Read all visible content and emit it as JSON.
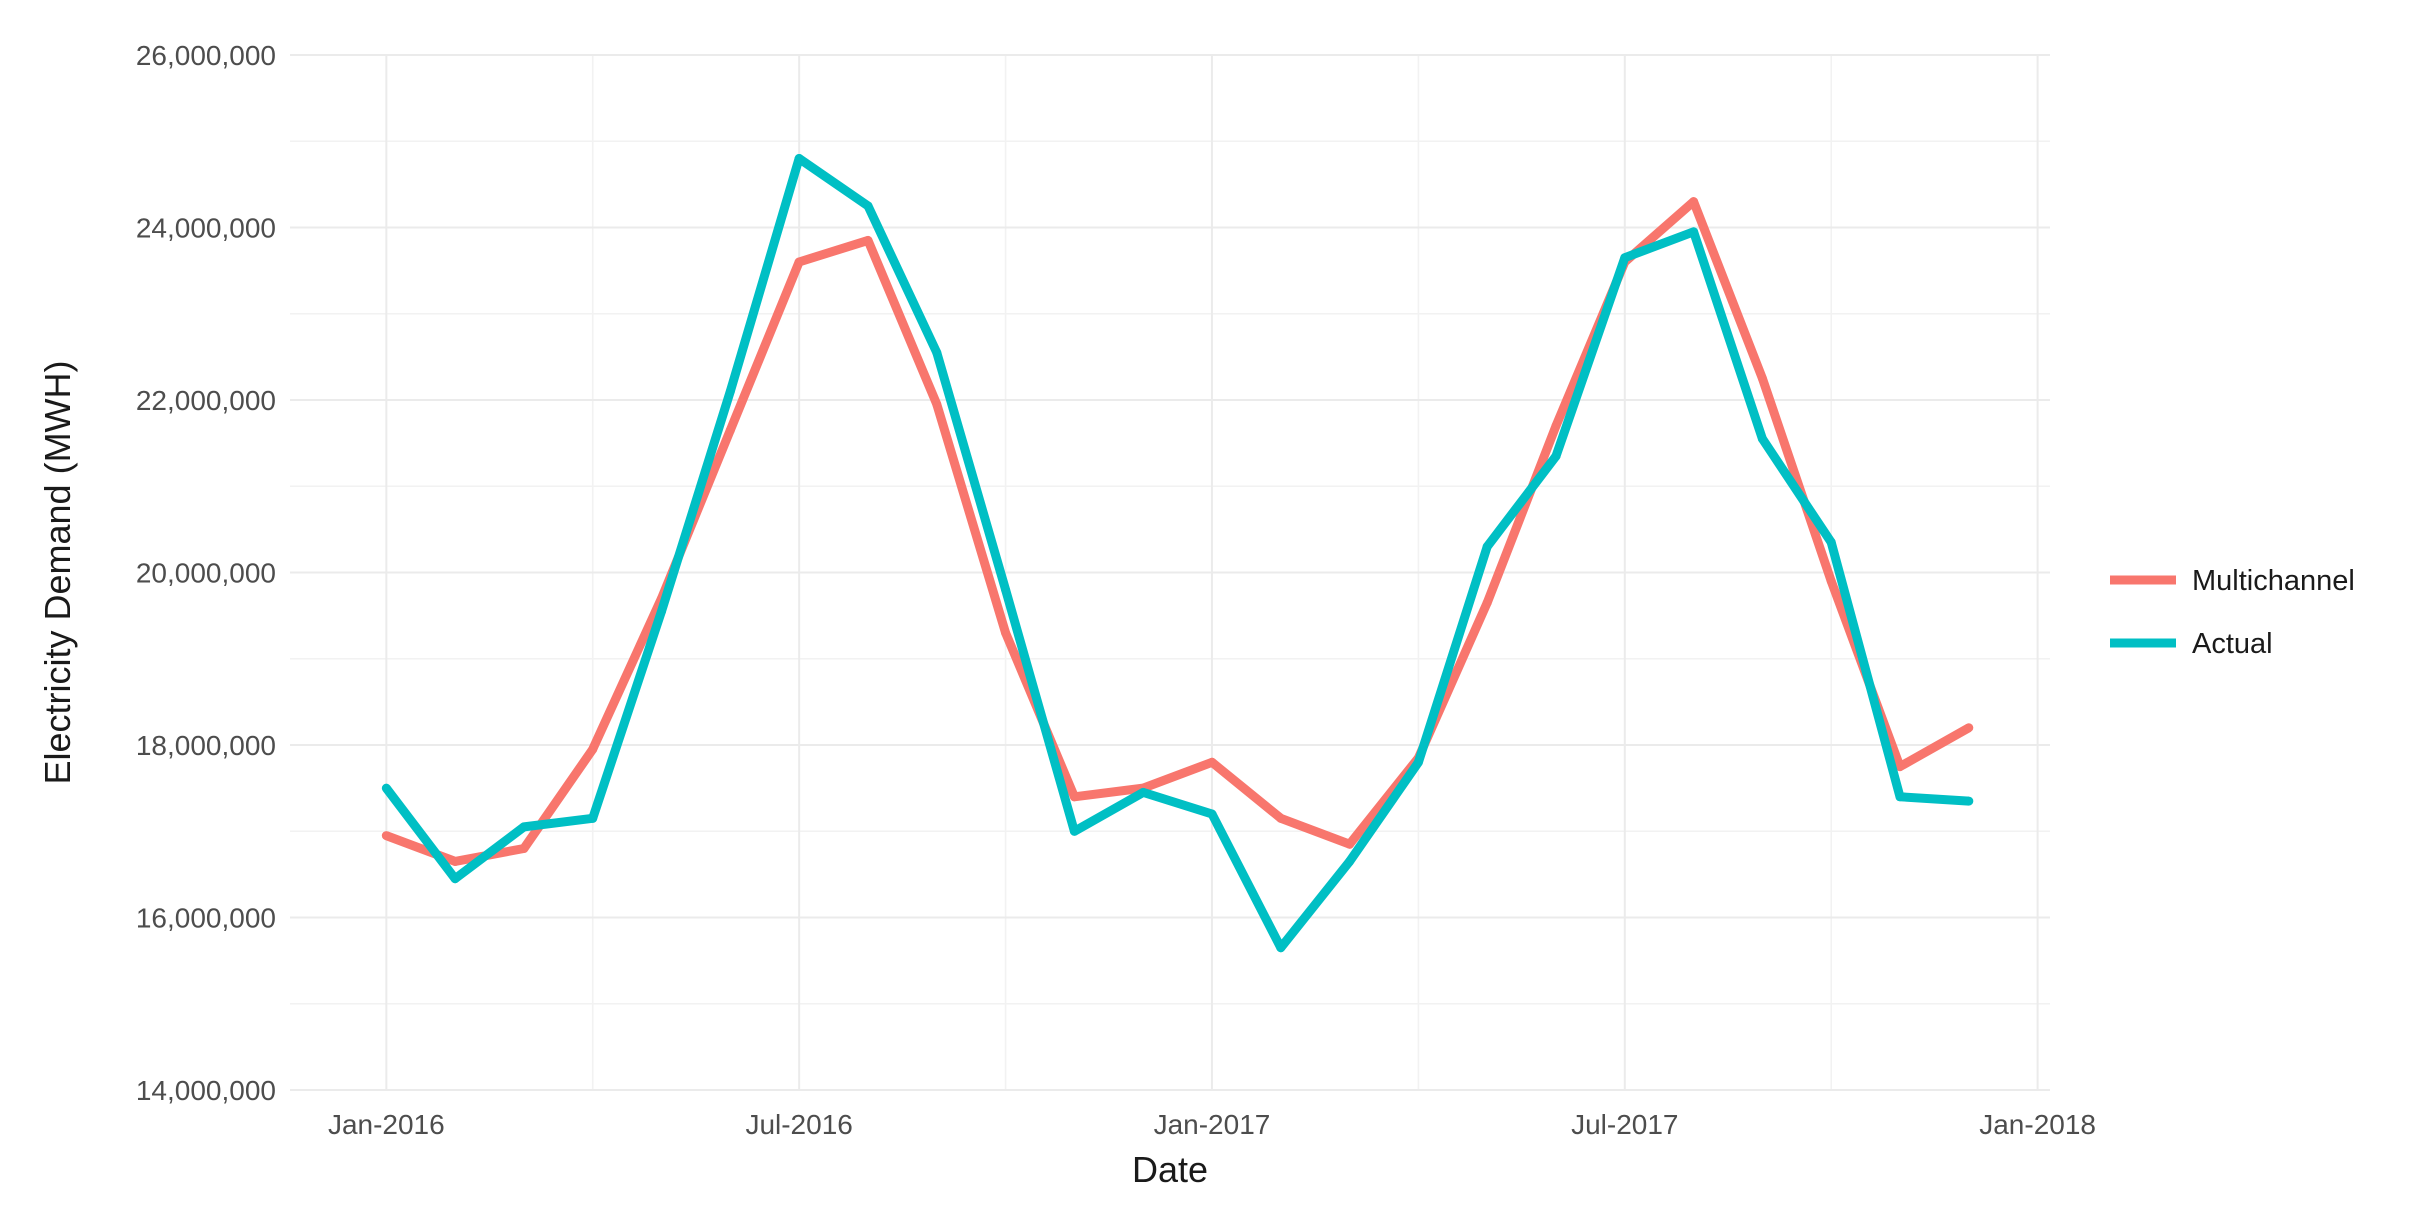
{
  "chart_data": {
    "type": "line",
    "title": "",
    "xlabel": "Date",
    "ylabel": "Electricity Demand (MWH)",
    "x": [
      "2016-01",
      "2016-02",
      "2016-03",
      "2016-04",
      "2016-05",
      "2016-06",
      "2016-07",
      "2016-08",
      "2016-09",
      "2016-10",
      "2016-11",
      "2016-12",
      "2017-01",
      "2017-02",
      "2017-03",
      "2017-04",
      "2017-05",
      "2017-06",
      "2017-07",
      "2017-08",
      "2017-09",
      "2017-10",
      "2017-11",
      "2017-12"
    ],
    "series": [
      {
        "name": "Multichannel",
        "color": "#F8766D",
        "values": [
          16950000,
          16650000,
          16800000,
          17950000,
          19700000,
          21650000,
          23600000,
          23850000,
          21950000,
          19300000,
          17400000,
          17500000,
          17800000,
          17150000,
          16850000,
          17850000,
          19650000,
          21700000,
          23600000,
          24300000,
          22250000,
          19900000,
          17750000,
          18200000
        ]
      },
      {
        "name": "Actual",
        "color": "#00BFC4",
        "values": [
          17500000,
          16450000,
          17050000,
          17150000,
          19550000,
          22100000,
          24800000,
          24250000,
          22550000,
          19800000,
          17000000,
          17450000,
          17200000,
          15650000,
          16650000,
          17800000,
          20300000,
          21350000,
          23650000,
          23950000,
          21550000,
          20350000,
          17400000,
          17350000
        ]
      }
    ],
    "ylim": [
      14000000,
      26000000
    ],
    "y_ticks": [
      14000000,
      16000000,
      18000000,
      20000000,
      22000000,
      24000000,
      26000000
    ],
    "y_tick_labels": [
      "14,000,000",
      "16,000,000",
      "18,000,000",
      "20,000,000",
      "22,000,000",
      "24,000,000",
      "26,000,000"
    ],
    "x_ticks": [
      "2016-01",
      "2016-07",
      "2017-01",
      "2017-07",
      "2018-01"
    ],
    "x_tick_labels": [
      "Jan-2016",
      "Jul-2016",
      "Jan-2017",
      "Jul-2017",
      "Jan-2018"
    ],
    "xlim": [
      "2015-12",
      "2018-01"
    ],
    "grid": true,
    "legend_position": "right",
    "legend": [
      "Multichannel",
      "Actual"
    ]
  }
}
